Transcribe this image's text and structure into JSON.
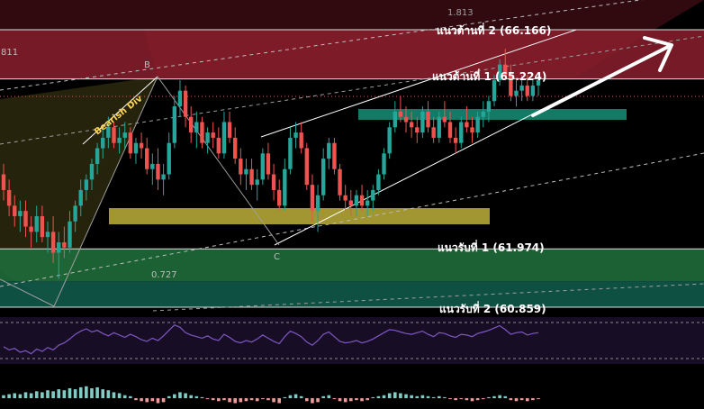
{
  "chart_data": {
    "type": "candlestick",
    "levels": {
      "resistance_2": {
        "label": "แนวต้านที่ 2 (66.166)",
        "value": 66.166
      },
      "resistance_1": {
        "label": "แนวต้านที่ 1 (65.224)",
        "value": 65.224
      },
      "support_1": {
        "label": "แนวรับที่ 1 (61.974)",
        "value": 61.974
      },
      "support_2": {
        "label": "แนวรับที่ 2 (60.859)",
        "value": 60.859
      }
    },
    "fib_labels": {
      "top": "1.813",
      "mid": "0.727",
      "left": "811"
    },
    "annotations": {
      "bearish_div": "Bearish Div",
      "point_b": "B",
      "point_c": "C"
    },
    "colors": {
      "up": "#26a69a",
      "down": "#ef5350",
      "rsi": "#7e57c2",
      "resistance_zone": "#8b1e2e",
      "support_zone": "#1f6b3a",
      "support_zone_2": "#0f5a4a",
      "yellow_zone": "#b3a636",
      "teal_zone": "#16806c"
    },
    "candles": [
      [
        63.4,
        63.6,
        62.9,
        63.1
      ],
      [
        63.1,
        63.3,
        62.6,
        62.8
      ],
      [
        62.8,
        63.0,
        62.4,
        62.6
      ],
      [
        62.6,
        62.9,
        62.3,
        62.7
      ],
      [
        62.7,
        62.9,
        62.2,
        62.4
      ],
      [
        62.4,
        62.6,
        62.0,
        62.3
      ],
      [
        62.3,
        62.8,
        62.1,
        62.6
      ],
      [
        62.6,
        62.8,
        62.1,
        62.2
      ],
      [
        62.2,
        62.5,
        61.9,
        62.3
      ],
      [
        62.3,
        62.6,
        61.7,
        61.9
      ],
      [
        61.9,
        62.3,
        61.4,
        62.1
      ],
      [
        62.1,
        62.4,
        61.8,
        62.0
      ],
      [
        62.0,
        62.7,
        61.9,
        62.5
      ],
      [
        62.5,
        62.9,
        62.3,
        62.8
      ],
      [
        62.8,
        63.3,
        62.6,
        63.1
      ],
      [
        63.1,
        63.4,
        62.9,
        63.3
      ],
      [
        63.3,
        63.7,
        63.1,
        63.6
      ],
      [
        63.6,
        64.0,
        63.4,
        63.9
      ],
      [
        63.9,
        64.3,
        63.7,
        64.1
      ],
      [
        64.1,
        64.5,
        63.9,
        64.3
      ],
      [
        64.3,
        64.4,
        63.9,
        64.0
      ],
      [
        64.0,
        64.3,
        63.8,
        64.1
      ],
      [
        64.1,
        64.4,
        63.9,
        64.2
      ],
      [
        64.2,
        64.3,
        63.7,
        63.8
      ],
      [
        63.8,
        64.1,
        63.6,
        64.0
      ],
      [
        64.0,
        64.2,
        63.7,
        63.9
      ],
      [
        63.9,
        64.1,
        63.4,
        63.5
      ],
      [
        63.5,
        63.8,
        63.2,
        63.6
      ],
      [
        63.6,
        63.9,
        63.1,
        63.3
      ],
      [
        63.3,
        63.6,
        63.0,
        63.4
      ],
      [
        63.4,
        64.2,
        63.3,
        64.0
      ],
      [
        64.0,
        64.9,
        63.9,
        64.7
      ],
      [
        64.7,
        65.2,
        64.5,
        65.0
      ],
      [
        65.0,
        65.1,
        64.3,
        64.5
      ],
      [
        64.5,
        64.7,
        64.0,
        64.2
      ],
      [
        64.2,
        64.6,
        63.9,
        64.4
      ],
      [
        64.4,
        64.5,
        63.9,
        64.0
      ],
      [
        64.0,
        64.3,
        63.8,
        64.2
      ],
      [
        64.2,
        64.4,
        63.9,
        64.1
      ],
      [
        64.1,
        64.3,
        63.7,
        63.8
      ],
      [
        63.8,
        64.6,
        63.7,
        64.4
      ],
      [
        64.4,
        64.6,
        64.0,
        64.1
      ],
      [
        64.1,
        64.3,
        63.6,
        63.7
      ],
      [
        63.7,
        63.9,
        63.2,
        63.4
      ],
      [
        63.4,
        63.7,
        63.1,
        63.5
      ],
      [
        63.5,
        63.7,
        63.1,
        63.2
      ],
      [
        63.2,
        63.5,
        62.9,
        63.3
      ],
      [
        63.3,
        63.9,
        63.2,
        63.8
      ],
      [
        63.8,
        64.0,
        63.3,
        63.4
      ],
      [
        63.4,
        63.6,
        62.9,
        63.1
      ],
      [
        63.1,
        63.3,
        62.7,
        62.8
      ],
      [
        62.8,
        63.7,
        62.7,
        63.5
      ],
      [
        63.5,
        64.3,
        63.4,
        64.1
      ],
      [
        64.1,
        64.4,
        63.9,
        64.2
      ],
      [
        64.2,
        64.4,
        63.8,
        63.9
      ],
      [
        63.9,
        64.0,
        63.1,
        63.2
      ],
      [
        63.2,
        63.4,
        62.5,
        62.7
      ],
      [
        62.7,
        63.2,
        62.3,
        63.0
      ],
      [
        63.0,
        63.9,
        62.9,
        63.7
      ],
      [
        63.7,
        64.1,
        63.5,
        64.0
      ],
      [
        64.0,
        64.1,
        63.4,
        63.5
      ],
      [
        63.5,
        63.6,
        62.9,
        63.0
      ],
      [
        63.0,
        63.2,
        62.7,
        62.9
      ],
      [
        62.9,
        63.1,
        62.6,
        62.8
      ],
      [
        62.8,
        63.1,
        62.6,
        63.0
      ],
      [
        63.0,
        63.2,
        62.7,
        62.8
      ],
      [
        62.8,
        63.1,
        62.6,
        62.9
      ],
      [
        62.9,
        63.2,
        62.7,
        63.1
      ],
      [
        63.1,
        63.5,
        63.0,
        63.4
      ],
      [
        63.4,
        63.9,
        63.3,
        63.8
      ],
      [
        63.8,
        64.4,
        63.7,
        64.3
      ],
      [
        64.3,
        64.8,
        64.2,
        64.6
      ],
      [
        64.6,
        64.9,
        64.4,
        64.5
      ],
      [
        64.5,
        64.7,
        64.2,
        64.4
      ],
      [
        64.4,
        64.6,
        64.1,
        64.3
      ],
      [
        64.3,
        64.5,
        64.0,
        64.2
      ],
      [
        64.2,
        64.7,
        64.1,
        64.6
      ],
      [
        64.6,
        64.8,
        64.2,
        64.3
      ],
      [
        64.3,
        64.5,
        64.0,
        64.1
      ],
      [
        64.1,
        64.6,
        64.0,
        64.5
      ],
      [
        64.5,
        64.8,
        64.3,
        64.4
      ],
      [
        64.4,
        64.6,
        64.0,
        64.1
      ],
      [
        64.1,
        64.3,
        63.8,
        64.0
      ],
      [
        64.0,
        64.5,
        63.9,
        64.4
      ],
      [
        64.4,
        64.7,
        64.2,
        64.3
      ],
      [
        64.3,
        64.5,
        64.0,
        64.2
      ],
      [
        64.2,
        64.6,
        64.1,
        64.5
      ],
      [
        64.5,
        64.8,
        64.3,
        64.6
      ],
      [
        64.6,
        64.9,
        64.4,
        64.8
      ],
      [
        64.8,
        65.3,
        64.7,
        65.2
      ],
      [
        65.2,
        65.6,
        65.1,
        65.5
      ],
      [
        65.5,
        65.8,
        65.2,
        65.3
      ],
      [
        65.3,
        65.5,
        64.8,
        64.9
      ],
      [
        64.9,
        65.2,
        64.7,
        65.0
      ],
      [
        65.0,
        65.3,
        64.8,
        65.1
      ],
      [
        65.1,
        65.3,
        64.8,
        64.9
      ],
      [
        64.9,
        65.2,
        64.8,
        65.1
      ],
      [
        65.1,
        65.3,
        64.9,
        65.2
      ]
    ],
    "rsi": [
      42,
      38,
      40,
      35,
      37,
      33,
      39,
      36,
      41,
      38,
      44,
      47,
      52,
      58,
      62,
      65,
      61,
      63,
      59,
      56,
      60,
      57,
      54,
      58,
      55,
      51,
      49,
      53,
      50,
      56,
      63,
      70,
      67,
      60,
      57,
      55,
      53,
      56,
      52,
      50,
      58,
      54,
      49,
      47,
      50,
      48,
      52,
      57,
      53,
      49,
      46,
      55,
      62,
      59,
      55,
      48,
      44,
      50,
      58,
      61,
      55,
      49,
      47,
      48,
      50,
      47,
      49,
      52,
      56,
      60,
      64,
      63,
      61,
      59,
      58,
      60,
      62,
      58,
      55,
      60,
      59,
      56,
      54,
      58,
      57,
      55,
      59,
      61,
      63,
      66,
      69,
      64,
      58,
      60,
      61,
      57,
      59,
      60
    ],
    "macd_hist": [
      3,
      4,
      5,
      4,
      6,
      5,
      7,
      6,
      8,
      7,
      9,
      8,
      10,
      9,
      11,
      12,
      10,
      11,
      9,
      8,
      6,
      5,
      3,
      2,
      -2,
      -3,
      -4,
      -3,
      -5,
      -4,
      2,
      4,
      6,
      5,
      3,
      2,
      1,
      -1,
      -2,
      -3,
      -2,
      -4,
      -5,
      -4,
      -3,
      -2,
      -3,
      -1,
      -2,
      -4,
      -5,
      1,
      3,
      4,
      2,
      -3,
      -5,
      -4,
      2,
      3,
      -1,
      -3,
      -4,
      -3,
      -2,
      -3,
      -2,
      1,
      2,
      3,
      5,
      6,
      5,
      4,
      3,
      2,
      3,
      2,
      1,
      2,
      1,
      -1,
      -2,
      -1,
      -2,
      -3,
      -2,
      -1,
      1,
      2,
      3,
      2,
      -2,
      -3,
      -2,
      -3,
      -2,
      -1
    ]
  }
}
